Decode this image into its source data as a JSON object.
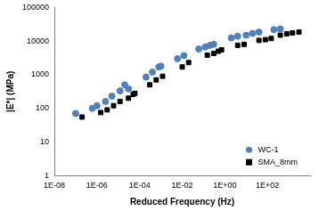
{
  "chart_data": {
    "type": "scatter",
    "x_label": "Reduced Frequency (Hz)",
    "y_label": "|E*| (MPa)",
    "log": true,
    "grid": false,
    "legend": "bottom-right",
    "xlim": [
      1e-08,
      10000.0
    ],
    "xticks": [
      {
        "value": 1e-08,
        "label": "1E-08"
      },
      {
        "value": 1e-06,
        "label": "1E-06"
      },
      {
        "value": 0.0001,
        "label": "1E-04"
      },
      {
        "value": 0.01,
        "label": "1E-02"
      },
      {
        "value": 1,
        "label": "1E+00"
      },
      {
        "value": 100,
        "label": "1E+02"
      }
    ],
    "ylim": [
      1,
      100000
    ],
    "yticks": [
      1,
      10,
      100,
      1000,
      10000,
      100000
    ],
    "series": [
      {
        "name": "WC-1",
        "color": "#4f81bd",
        "marker": "circle",
        "x": [
          1e-07,
          6e-07,
          1e-06,
          2.5e-06,
          5e-06,
          1.2e-05,
          2e-05,
          3e-05,
          0.0002,
          0.0004,
          0.0008,
          0.001,
          0.006,
          0.012,
          0.06,
          0.12,
          0.2,
          0.3,
          2,
          4,
          10,
          20,
          40,
          200,
          400
        ],
        "values": [
          70,
          100,
          120,
          160,
          230,
          330,
          500,
          380,
          850,
          1200,
          1700,
          1800,
          3000,
          3700,
          5800,
          6700,
          7500,
          8000,
          12500,
          14000,
          15000,
          17000,
          18500,
          22000,
          23000
        ]
      },
      {
        "name": "SMA_8mm",
        "color": "#000000",
        "marker": "square",
        "x": [
          2e-07,
          1.5e-06,
          3e-06,
          6e-06,
          1.2e-05,
          3e-05,
          5e-05,
          6e-05,
          0.0003,
          0.0006,
          0.0012,
          0.01,
          0.02,
          0.15,
          0.3,
          0.5,
          0.7,
          4,
          8,
          40,
          80,
          150,
          400,
          800,
          1500,
          3000
        ],
        "values": [
          55,
          75,
          90,
          120,
          160,
          200,
          260,
          280,
          500,
          700,
          900,
          1700,
          2300,
          3800,
          4300,
          5000,
          5500,
          7500,
          8000,
          10500,
          11000,
          12000,
          15000,
          16500,
          17500,
          18500
        ]
      }
    ]
  }
}
